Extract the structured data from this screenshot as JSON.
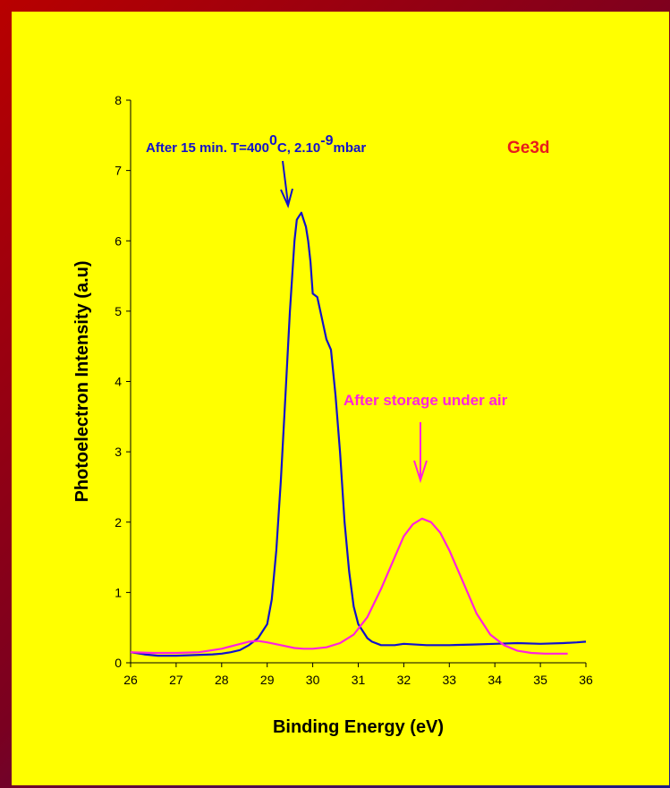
{
  "chart_data": {
    "type": "line",
    "xlabel": "Binding Energy (eV)",
    "ylabel": "Photoelectron Intensity (a.u)",
    "xlim": [
      26,
      36
    ],
    "ylim": [
      0,
      8
    ],
    "xticks": [
      "26",
      "27",
      "28",
      "29",
      "30",
      "31",
      "32",
      "33",
      "34",
      "35",
      "36"
    ],
    "yticks": [
      "0",
      "1",
      "2",
      "3",
      "4",
      "5",
      "6",
      "7",
      "8"
    ],
    "series": [
      {
        "color": "#1111cc",
        "x": [
          26.0,
          26.3,
          26.6,
          27.0,
          27.4,
          27.8,
          28.0,
          28.2,
          28.4,
          28.6,
          28.8,
          29.0,
          29.1,
          29.2,
          29.3,
          29.4,
          29.5,
          29.6,
          29.65,
          29.7,
          29.75,
          29.8,
          29.85,
          29.9,
          29.95,
          30.0,
          30.1,
          30.2,
          30.3,
          30.4,
          30.5,
          30.6,
          30.7,
          30.8,
          30.9,
          31.0,
          31.1,
          31.2,
          31.3,
          31.5,
          31.8,
          32.0,
          32.5,
          33.0,
          33.5,
          34.0,
          34.5,
          35.0,
          35.5,
          35.8,
          36.0
        ],
        "y": [
          0.15,
          0.12,
          0.1,
          0.1,
          0.11,
          0.12,
          0.13,
          0.15,
          0.18,
          0.25,
          0.35,
          0.55,
          0.9,
          1.6,
          2.6,
          3.8,
          5.0,
          6.0,
          6.3,
          6.35,
          6.4,
          6.3,
          6.2,
          6.0,
          5.7,
          5.25,
          5.2,
          4.9,
          4.6,
          4.45,
          3.8,
          3.0,
          2.0,
          1.3,
          0.8,
          0.55,
          0.45,
          0.35,
          0.3,
          0.25,
          0.25,
          0.27,
          0.25,
          0.25,
          0.26,
          0.27,
          0.28,
          0.27,
          0.28,
          0.29,
          0.3
        ]
      },
      {
        "color": "#ff22dd",
        "x": [
          26.0,
          26.5,
          27.0,
          27.5,
          28.0,
          28.3,
          28.6,
          28.8,
          29.0,
          29.3,
          29.6,
          29.8,
          30.0,
          30.3,
          30.6,
          30.9,
          31.2,
          31.5,
          31.8,
          32.0,
          32.2,
          32.4,
          32.6,
          32.8,
          33.0,
          33.3,
          33.6,
          33.9,
          34.2,
          34.5,
          34.8,
          35.1,
          35.4,
          35.6
        ],
        "y": [
          0.15,
          0.14,
          0.14,
          0.15,
          0.2,
          0.25,
          0.3,
          0.31,
          0.29,
          0.25,
          0.21,
          0.2,
          0.2,
          0.22,
          0.28,
          0.4,
          0.65,
          1.05,
          1.5,
          1.8,
          1.97,
          2.05,
          2.0,
          1.85,
          1.6,
          1.15,
          0.7,
          0.4,
          0.25,
          0.17,
          0.14,
          0.13,
          0.13,
          0.13
        ]
      }
    ],
    "annotations": [
      {
        "text": "After 15 min. T=400",
        "sup1": "0",
        "mid": "C, 2.10",
        "sup2": "-9",
        "tail": "mbar",
        "color": "#1111cc"
      },
      {
        "text": "After storage under air",
        "color": "#ff22dd"
      },
      {
        "text": "Ge3d",
        "color": "#e81c1c"
      }
    ]
  }
}
